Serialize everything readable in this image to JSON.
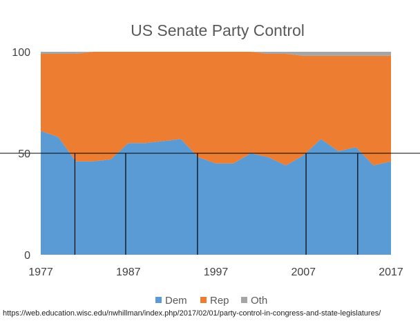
{
  "chart_data": {
    "type": "area",
    "stacked": true,
    "title": "US Senate Party Control",
    "xlabel": "",
    "ylabel": "",
    "xlim": [
      1977,
      2017
    ],
    "ylim": [
      0,
      100
    ],
    "x_ticks": [
      "1977",
      "1987",
      "1997",
      "2007",
      "2017"
    ],
    "y_ticks": [
      "0",
      "50",
      "100"
    ],
    "x": [
      1977,
      1979,
      1981,
      1983,
      1985,
      1987,
      1989,
      1991,
      1993,
      1995,
      1997,
      1999,
      2001,
      2003,
      2005,
      2007,
      2009,
      2011,
      2013,
      2015,
      2017
    ],
    "series": [
      {
        "name": "Dem",
        "color": "#5B9BD5",
        "values": [
          61,
          58,
          46,
          46,
          47,
          55,
          55,
          56,
          57,
          48,
          45,
          45,
          50,
          48,
          44,
          49,
          57,
          51,
          53,
          44,
          46
        ]
      },
      {
        "name": "Rep",
        "color": "#ED7D31",
        "values": [
          38,
          41,
          53,
          54,
          53,
          45,
          45,
          44,
          43,
          52,
          55,
          55,
          50,
          51,
          55,
          49,
          41,
          47,
          45,
          54,
          52
        ]
      },
      {
        "name": "Oth",
        "color": "#A5A5A5",
        "values": [
          1,
          1,
          1,
          0,
          0,
          0,
          0,
          0,
          0,
          0,
          0,
          0,
          0,
          1,
          1,
          2,
          2,
          2,
          2,
          2,
          2
        ]
      }
    ],
    "reference_line_y": 50,
    "vertical_markers_x": [
      1980.9,
      1986.7,
      1994.9,
      2007.3,
      2013.2
    ],
    "legend_position": "bottom",
    "grid": false
  },
  "source_text": "https://web.education.wisc.edu/nwhillman/index.php/2017/02/01/party-control-in-congress-and-state-legislatures/"
}
